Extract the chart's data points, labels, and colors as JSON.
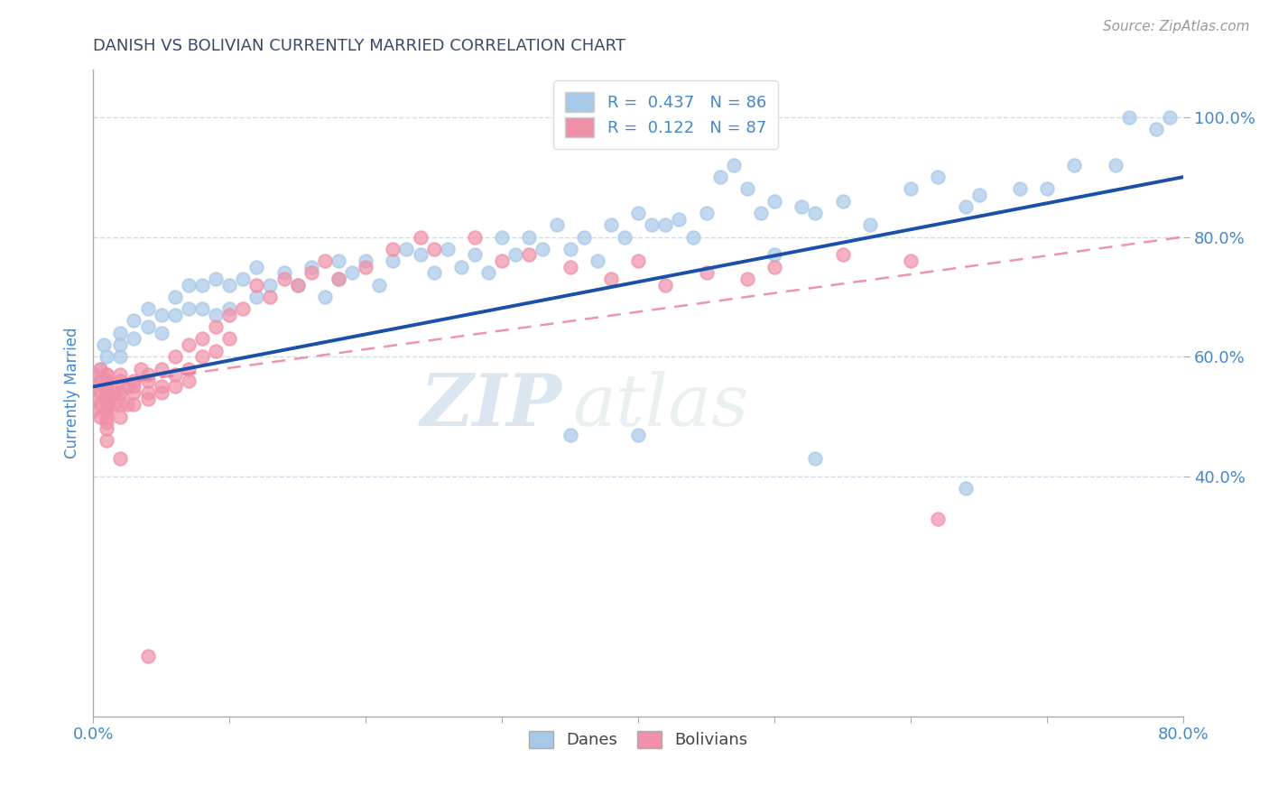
{
  "title": "DANISH VS BOLIVIAN CURRENTLY MARRIED CORRELATION CHART",
  "source": "Source: ZipAtlas.com",
  "ylabel_label": "Currently Married",
  "xmin": 0.0,
  "xmax": 0.8,
  "ymin": 0.0,
  "ymax": 1.08,
  "yticks": [
    0.4,
    0.6,
    0.8,
    1.0
  ],
  "ytick_labels": [
    "40.0%",
    "60.0%",
    "80.0%",
    "100.0%"
  ],
  "xticks": [
    0.0,
    0.1,
    0.2,
    0.3,
    0.4,
    0.5,
    0.6,
    0.7,
    0.8
  ],
  "xtick_labels": [
    "0.0%",
    "",
    "",
    "",
    "",
    "",
    "",
    "",
    "80.0%"
  ],
  "danes_R": 0.437,
  "danes_N": 86,
  "bolivians_R": 0.122,
  "bolivians_N": 87,
  "danes_color": "#a8c8e8",
  "bolivians_color": "#f090a8",
  "danes_line_color": "#1a4faa",
  "bolivians_line_color": "#e87090",
  "title_color": "#3a4a6b",
  "axis_color": "#4488cc",
  "watermark_zip": "ZIP",
  "watermark_atlas": "atlas",
  "grid_color": "#d0dde8",
  "danes_x": [
    0.005,
    0.008,
    0.01,
    0.01,
    0.01,
    0.02,
    0.02,
    0.02,
    0.03,
    0.03,
    0.04,
    0.04,
    0.05,
    0.05,
    0.06,
    0.06,
    0.07,
    0.07,
    0.08,
    0.08,
    0.09,
    0.09,
    0.1,
    0.1,
    0.11,
    0.12,
    0.12,
    0.13,
    0.14,
    0.15,
    0.16,
    0.17,
    0.18,
    0.18,
    0.19,
    0.2,
    0.21,
    0.22,
    0.23,
    0.24,
    0.25,
    0.26,
    0.27,
    0.28,
    0.29,
    0.3,
    0.31,
    0.32,
    0.33,
    0.34,
    0.35,
    0.36,
    0.37,
    0.38,
    0.39,
    0.4,
    0.41,
    0.42,
    0.43,
    0.44,
    0.45,
    0.46,
    0.47,
    0.48,
    0.49,
    0.5,
    0.5,
    0.52,
    0.53,
    0.55,
    0.57,
    0.6,
    0.62,
    0.64,
    0.65,
    0.68,
    0.7,
    0.72,
    0.75,
    0.76,
    0.78,
    0.79,
    0.35,
    0.4,
    0.53,
    0.64
  ],
  "danes_y": [
    0.58,
    0.62,
    0.6,
    0.56,
    0.54,
    0.6,
    0.64,
    0.62,
    0.63,
    0.66,
    0.65,
    0.68,
    0.67,
    0.64,
    0.7,
    0.67,
    0.68,
    0.72,
    0.72,
    0.68,
    0.67,
    0.73,
    0.72,
    0.68,
    0.73,
    0.75,
    0.7,
    0.72,
    0.74,
    0.72,
    0.75,
    0.7,
    0.73,
    0.76,
    0.74,
    0.76,
    0.72,
    0.76,
    0.78,
    0.77,
    0.74,
    0.78,
    0.75,
    0.77,
    0.74,
    0.8,
    0.77,
    0.8,
    0.78,
    0.82,
    0.78,
    0.8,
    0.76,
    0.82,
    0.8,
    0.84,
    0.82,
    0.82,
    0.83,
    0.8,
    0.84,
    0.9,
    0.92,
    0.88,
    0.84,
    0.77,
    0.86,
    0.85,
    0.84,
    0.86,
    0.82,
    0.88,
    0.9,
    0.85,
    0.87,
    0.88,
    0.88,
    0.92,
    0.92,
    1.0,
    0.98,
    1.0,
    0.47,
    0.47,
    0.43,
    0.38
  ],
  "bolivians_x": [
    0.0,
    0.0,
    0.0,
    0.0,
    0.005,
    0.005,
    0.005,
    0.005,
    0.005,
    0.01,
    0.01,
    0.01,
    0.01,
    0.01,
    0.01,
    0.01,
    0.01,
    0.01,
    0.01,
    0.01,
    0.01,
    0.01,
    0.01,
    0.01,
    0.01,
    0.01,
    0.015,
    0.015,
    0.02,
    0.02,
    0.02,
    0.02,
    0.02,
    0.02,
    0.025,
    0.025,
    0.03,
    0.03,
    0.03,
    0.03,
    0.035,
    0.04,
    0.04,
    0.04,
    0.04,
    0.05,
    0.05,
    0.05,
    0.06,
    0.06,
    0.06,
    0.07,
    0.07,
    0.07,
    0.08,
    0.08,
    0.09,
    0.09,
    0.1,
    0.1,
    0.11,
    0.12,
    0.13,
    0.14,
    0.15,
    0.16,
    0.17,
    0.18,
    0.2,
    0.22,
    0.24,
    0.25,
    0.28,
    0.3,
    0.32,
    0.35,
    0.38,
    0.4,
    0.42,
    0.45,
    0.48,
    0.5,
    0.55,
    0.6,
    0.62,
    0.02,
    0.04
  ],
  "bolivians_y": [
    0.55,
    0.57,
    0.53,
    0.51,
    0.56,
    0.54,
    0.52,
    0.58,
    0.5,
    0.55,
    0.54,
    0.53,
    0.57,
    0.52,
    0.51,
    0.56,
    0.49,
    0.53,
    0.5,
    0.48,
    0.55,
    0.54,
    0.52,
    0.57,
    0.46,
    0.51,
    0.54,
    0.52,
    0.54,
    0.56,
    0.52,
    0.54,
    0.57,
    0.5,
    0.55,
    0.52,
    0.54,
    0.56,
    0.52,
    0.55,
    0.58,
    0.56,
    0.54,
    0.57,
    0.53,
    0.58,
    0.55,
    0.54,
    0.6,
    0.57,
    0.55,
    0.62,
    0.58,
    0.56,
    0.63,
    0.6,
    0.65,
    0.61,
    0.67,
    0.63,
    0.68,
    0.72,
    0.7,
    0.73,
    0.72,
    0.74,
    0.76,
    0.73,
    0.75,
    0.78,
    0.8,
    0.78,
    0.8,
    0.76,
    0.77,
    0.75,
    0.73,
    0.76,
    0.72,
    0.74,
    0.73,
    0.75,
    0.77,
    0.76,
    0.33,
    0.43,
    0.1
  ]
}
